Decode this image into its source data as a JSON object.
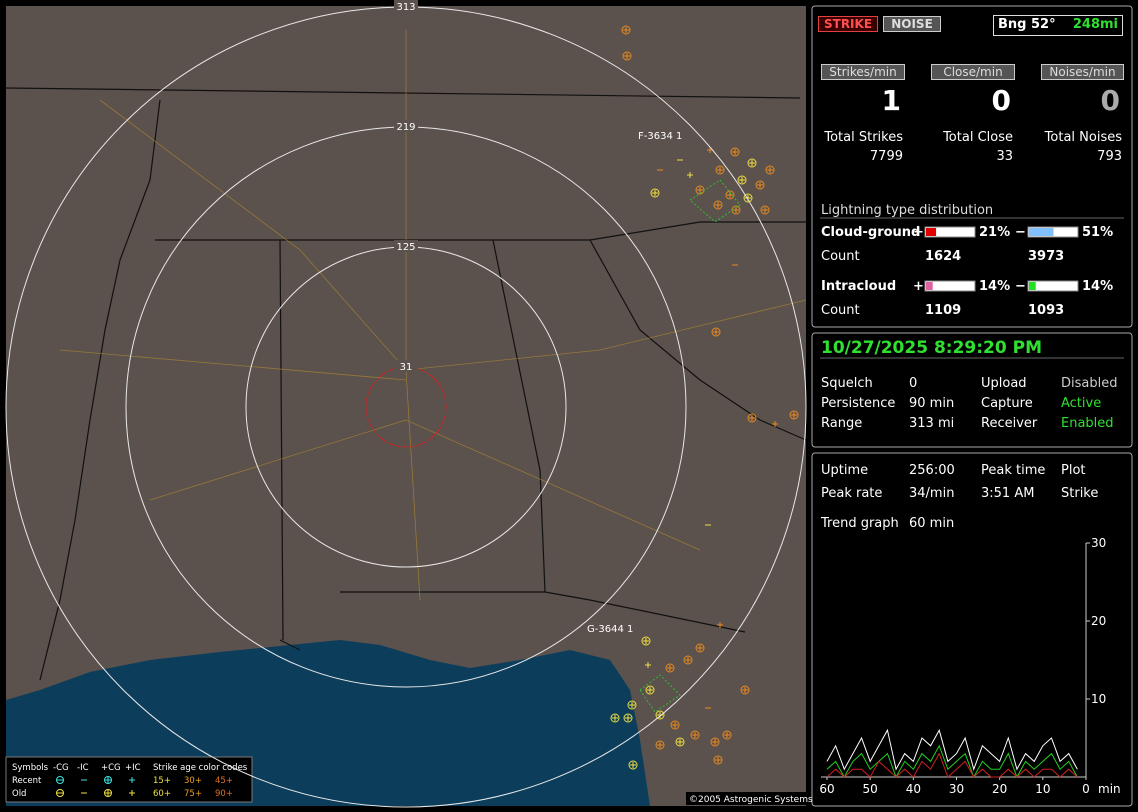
{
  "map": {
    "range_rings": [
      "313",
      "219",
      "125",
      "31"
    ],
    "storms": [
      "F-3634 1",
      "G-3644 1"
    ],
    "legend": {
      "symbols": "Symbols",
      "types": [
        "-CG",
        "-IC",
        "+CG",
        "+IC"
      ],
      "age_title": "Strike age color codes",
      "rows": [
        "Recent",
        "Old"
      ],
      "ages_recent": [
        "15+",
        "30+",
        "45+"
      ],
      "ages_old": [
        "60+",
        "75+",
        "90+"
      ]
    },
    "copyright": "©2005 Astrogenic Systems"
  },
  "status": {
    "strike_button": "STRIKE",
    "noise_button": "NOISE",
    "bearing": "Bng 52°",
    "distance": "248mi",
    "rates": [
      {
        "label": "Strikes/min",
        "value": "1"
      },
      {
        "label": "Close/min",
        "value": "0"
      },
      {
        "label": "Noises/min",
        "value": "0"
      }
    ],
    "totals": [
      {
        "label": "Total Strikes",
        "value": "7799"
      },
      {
        "label": "Total Close",
        "value": "33"
      },
      {
        "label": "Total Noises",
        "value": "793"
      }
    ]
  },
  "distribution": {
    "title": "Lightning type distribution",
    "count_label": "Count",
    "rows": [
      {
        "label": "Cloud-ground",
        "plus": {
          "sign": "+",
          "percent": 21,
          "percent_label": "21%",
          "count": "1624"
        },
        "minus": {
          "sign": "−",
          "percent": 51,
          "percent_label": "51%",
          "count": "3973"
        }
      },
      {
        "label": "Intracloud",
        "plus": {
          "sign": "+",
          "percent": 14,
          "percent_label": "14%",
          "count": "1109"
        },
        "minus": {
          "sign": "−",
          "percent": 14,
          "percent_label": "14%",
          "count": "1093"
        }
      }
    ]
  },
  "settings": {
    "datetime": "10/27/2025 8:29:20 PM",
    "rows": [
      [
        "Squelch",
        "0",
        "Upload",
        "Disabled"
      ],
      [
        "Persistence",
        "90 min",
        "Capture",
        "Active"
      ],
      [
        "Range",
        "313 mi",
        "Receiver",
        "Enabled"
      ]
    ]
  },
  "stats": {
    "rows": [
      [
        "Uptime",
        "256:00",
        "Peak time",
        "3:51 AM",
        "Plot"
      ],
      [
        "Peak rate",
        "34/min",
        "",
        "",
        "Strike"
      ]
    ],
    "trend_label": "Trend graph",
    "trend_value": "60 min"
  },
  "chart_data": {
    "type": "line",
    "x_unit": "min",
    "xlim": [
      60,
      0
    ],
    "xticks": [
      60,
      50,
      40,
      30,
      20,
      10,
      0
    ],
    "ylim": [
      0,
      30
    ],
    "yticks": [
      10,
      20,
      30
    ],
    "x": [
      60,
      58,
      56,
      54,
      52,
      50,
      48,
      46,
      44,
      42,
      40,
      38,
      36,
      34,
      32,
      30,
      28,
      26,
      24,
      22,
      20,
      18,
      16,
      14,
      12,
      10,
      8,
      6,
      4,
      2
    ],
    "series": [
      {
        "color": "#ffffff",
        "values": [
          2,
          4,
          1,
          3,
          5,
          2,
          4,
          6,
          1,
          3,
          2,
          5,
          4,
          6,
          2,
          3,
          5,
          1,
          4,
          3,
          2,
          5,
          1,
          3,
          2,
          4,
          5,
          2,
          3,
          1
        ]
      },
      {
        "color": "#20d020",
        "values": [
          1,
          2,
          0,
          2,
          3,
          1,
          2,
          3,
          0,
          2,
          1,
          3,
          2,
          4,
          1,
          2,
          3,
          0,
          2,
          1,
          1,
          3,
          0,
          2,
          1,
          2,
          3,
          1,
          2,
          0
        ]
      },
      {
        "color": "#d02020",
        "values": [
          0,
          1,
          0,
          1,
          1,
          0,
          2,
          1,
          0,
          1,
          0,
          2,
          1,
          3,
          0,
          1,
          2,
          0,
          1,
          0,
          0,
          1,
          0,
          1,
          0,
          1,
          1,
          0,
          1,
          0
        ]
      }
    ]
  }
}
